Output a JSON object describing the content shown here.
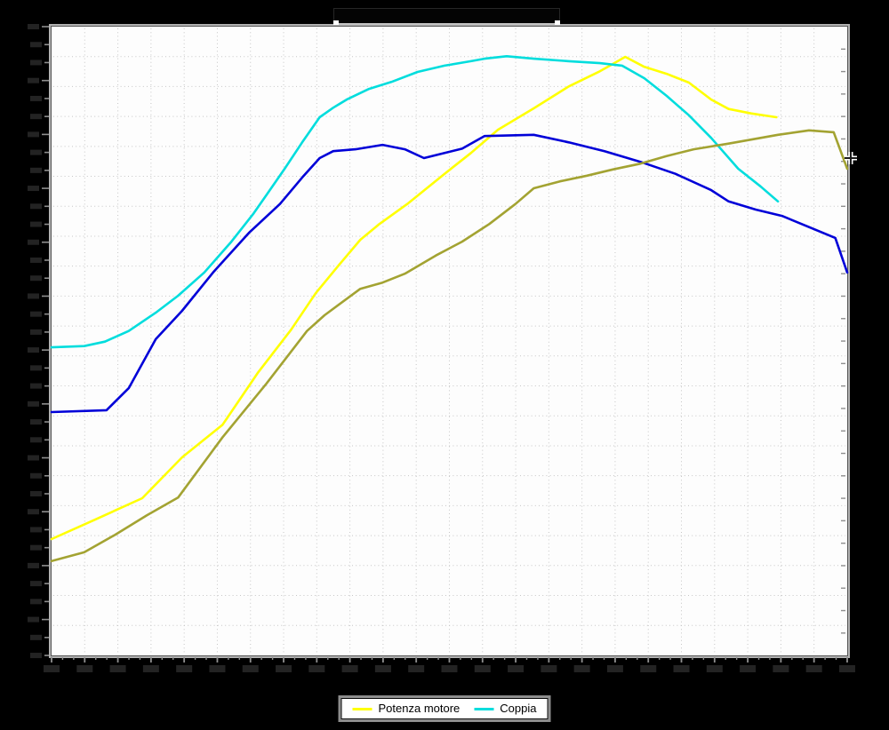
{
  "title_box": {
    "text": ""
  },
  "legend": {
    "items": [
      {
        "label": "Potenza motore",
        "color": "#ffff00"
      },
      {
        "label": "Coppia",
        "color": "#00dddd"
      }
    ]
  },
  "colors": {
    "background": "#000000",
    "plot_background": "#fdfdfd",
    "grid": "#c6c6c6",
    "frame_outer": "#b2b2b2",
    "frame_inner": "#555555",
    "tick": "#8f8f8f",
    "tick_label_smudge": "#232323"
  },
  "chart_data": {
    "type": "line",
    "title": "",
    "xlabel": "",
    "ylabel": "",
    "xlim": [
      0,
      100
    ],
    "ylim": [
      0,
      100
    ],
    "units_note": "axis tick labels are rendered black-on-black and illegible; point coordinates are percent of plot width (x) and percent of plot height from bottom (y)",
    "grid": "dotted",
    "legend_position": "bottom-center",
    "series": [
      {
        "name": "Potenza motore",
        "color": "#ffff00",
        "points": [
          [
            0,
            18.5
          ],
          [
            5.3,
            21.5
          ],
          [
            11.4,
            25.0
          ],
          [
            16.4,
            31.5
          ],
          [
            21.5,
            36.7
          ],
          [
            25.9,
            44.9
          ],
          [
            30.1,
            51.8
          ],
          [
            33.2,
            57.6
          ],
          [
            36.0,
            61.9
          ],
          [
            38.8,
            66.1
          ],
          [
            41.2,
            68.6
          ],
          [
            44.7,
            71.8
          ],
          [
            49.4,
            76.6
          ],
          [
            52.7,
            79.9
          ],
          [
            56.1,
            83.6
          ],
          [
            60.6,
            87.0
          ],
          [
            65.0,
            90.5
          ],
          [
            68.9,
            92.9
          ],
          [
            70.3,
            93.9
          ],
          [
            72.1,
            95.2
          ],
          [
            74.5,
            93.6
          ],
          [
            77.3,
            92.5
          ],
          [
            80.1,
            91.1
          ],
          [
            82.9,
            88.4
          ],
          [
            85.1,
            86.9
          ],
          [
            87.9,
            86.2
          ],
          [
            91.1,
            85.6
          ]
        ]
      },
      {
        "name": "Coppia",
        "color": "#00dddd",
        "points": [
          [
            0,
            49.0
          ],
          [
            4.1,
            49.2
          ],
          [
            6.7,
            49.9
          ],
          [
            9.7,
            51.6
          ],
          [
            13.1,
            54.5
          ],
          [
            15.9,
            57.2
          ],
          [
            19.2,
            60.9
          ],
          [
            22.6,
            65.8
          ],
          [
            25.4,
            70.3
          ],
          [
            27.0,
            73.2
          ],
          [
            29.3,
            77.4
          ],
          [
            31.5,
            81.6
          ],
          [
            33.7,
            85.6
          ],
          [
            35.4,
            87.1
          ],
          [
            37.1,
            88.4
          ],
          [
            39.9,
            90.1
          ],
          [
            42.7,
            91.2
          ],
          [
            46.0,
            92.8
          ],
          [
            49.4,
            93.8
          ],
          [
            52.7,
            94.5
          ],
          [
            54.4,
            94.9
          ],
          [
            57.2,
            95.3
          ],
          [
            60.6,
            94.9
          ],
          [
            65.0,
            94.5
          ],
          [
            68.9,
            94.2
          ],
          [
            71.7,
            93.8
          ],
          [
            74.5,
            91.8
          ],
          [
            77.3,
            89.0
          ],
          [
            80.1,
            85.9
          ],
          [
            82.9,
            82.3
          ],
          [
            86.3,
            77.4
          ],
          [
            89.1,
            74.6
          ],
          [
            91.3,
            72.2
          ]
        ]
      },
      {
        "name": "unlabeled-blue",
        "color": "#0000d8",
        "points": [
          [
            0,
            38.7
          ],
          [
            6.9,
            39.0
          ],
          [
            9.7,
            42.5
          ],
          [
            13.1,
            50.3
          ],
          [
            16.4,
            54.8
          ],
          [
            20.3,
            60.9
          ],
          [
            24.8,
            67.2
          ],
          [
            28.7,
            71.8
          ],
          [
            31.5,
            76.0
          ],
          [
            33.7,
            79.1
          ],
          [
            35.4,
            80.2
          ],
          [
            38.2,
            80.5
          ],
          [
            41.6,
            81.2
          ],
          [
            44.4,
            80.5
          ],
          [
            46.8,
            79.1
          ],
          [
            49.4,
            79.9
          ],
          [
            51.6,
            80.6
          ],
          [
            54.4,
            82.6
          ],
          [
            60.6,
            82.8
          ],
          [
            65.0,
            81.6
          ],
          [
            69.5,
            80.2
          ],
          [
            74.0,
            78.5
          ],
          [
            78.4,
            76.6
          ],
          [
            82.9,
            74.0
          ],
          [
            85.1,
            72.2
          ],
          [
            88.5,
            70.9
          ],
          [
            91.8,
            69.9
          ],
          [
            98.5,
            66.4
          ],
          [
            100,
            60.9
          ]
        ]
      },
      {
        "name": "unlabeled-dark-yellow",
        "color": "#a3a332",
        "points": [
          [
            0,
            15.0
          ],
          [
            4.1,
            16.4
          ],
          [
            8.0,
            19.2
          ],
          [
            12.0,
            22.3
          ],
          [
            15.9,
            25.1
          ],
          [
            21.5,
            34.7
          ],
          [
            27.0,
            43.2
          ],
          [
            32.1,
            51.6
          ],
          [
            34.3,
            54.1
          ],
          [
            38.8,
            58.3
          ],
          [
            41.6,
            59.3
          ],
          [
            44.4,
            60.7
          ],
          [
            48.3,
            63.6
          ],
          [
            51.6,
            65.8
          ],
          [
            55.0,
            68.6
          ],
          [
            58.3,
            71.8
          ],
          [
            60.6,
            74.3
          ],
          [
            63.9,
            75.4
          ],
          [
            67.3,
            76.3
          ],
          [
            70.6,
            77.3
          ],
          [
            74.0,
            78.2
          ],
          [
            77.3,
            79.4
          ],
          [
            80.7,
            80.5
          ],
          [
            85.1,
            81.4
          ],
          [
            91.3,
            82.8
          ],
          [
            95.2,
            83.5
          ],
          [
            98.3,
            83.2
          ],
          [
            100,
            77.4
          ]
        ]
      }
    ]
  }
}
